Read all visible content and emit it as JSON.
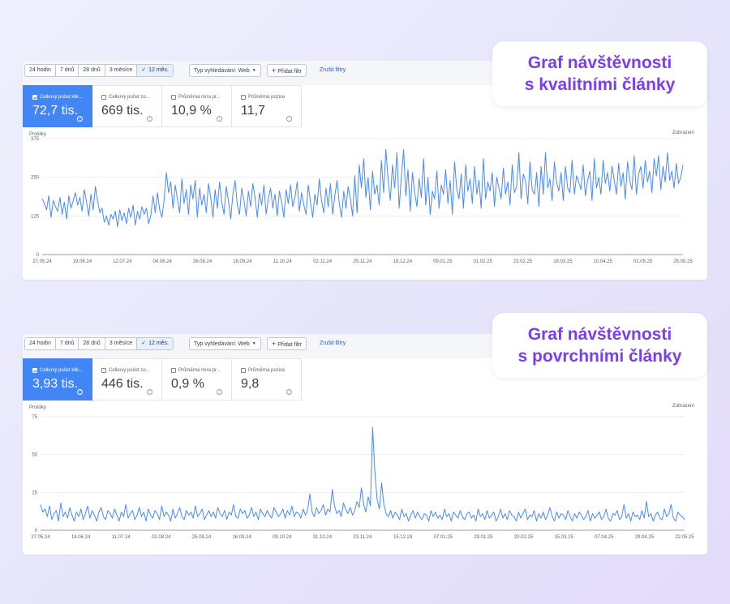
{
  "panels": [
    {
      "toolbar": {
        "ranges": [
          "24 hodin",
          "7 dnů",
          "28 dnů",
          "3 měsíce",
          "12 měs."
        ],
        "active_range_index": 4,
        "search_type": "Typ vyhledávání: Web",
        "add_filter": "Přidat filtr",
        "clear_filters": "Zrušit filtry"
      },
      "metrics": [
        {
          "label": "Celkový počet klik...",
          "value": "72,7 tis.",
          "active": true
        },
        {
          "label": "Celkový počet zo...",
          "value": "669 tis.",
          "active": false
        },
        {
          "label": "Průměrná míra pr...",
          "value": "10,9 %",
          "active": false
        },
        {
          "label": "Průměrná pozice",
          "value": "11,7",
          "active": false
        }
      ],
      "callout": {
        "line1": "Graf návštěvnosti",
        "line2": "s kvalitními články"
      }
    },
    {
      "toolbar": {
        "ranges": [
          "24 hodin",
          "7 dnů",
          "28 dnů",
          "3 měsíce",
          "12 měs."
        ],
        "active_range_index": 4,
        "search_type": "Typ vyhledávání: Web",
        "add_filter": "Přidat filtr",
        "clear_filters": "Zrušit filtry"
      },
      "metrics": [
        {
          "label": "Celkový počet klik...",
          "value": "3,93 tis.",
          "active": true
        },
        {
          "label": "Celkový počet zo...",
          "value": "446 tis.",
          "active": false
        },
        {
          "label": "Průměrná míra pr...",
          "value": "0,9 %",
          "active": false
        },
        {
          "label": "Průměrná pozice",
          "value": "9,8",
          "active": false
        }
      ],
      "callout": {
        "line1": "Graf návštěvnosti",
        "line2": "s povrchními články"
      }
    }
  ],
  "colors": {
    "accent": "#4285f4",
    "line": "#4a8af4",
    "callout_text": "#7b3df2"
  },
  "chart_data": [
    {
      "type": "line",
      "ylabel": "Prokliky",
      "y2label": "Zobrazení",
      "ylim": [
        0,
        375
      ],
      "yticks": [
        0,
        125,
        250,
        375
      ],
      "xticks": [
        "27.05.24",
        "19.06.24",
        "12.07.24",
        "04.08.24",
        "26.08.24",
        "18.09.24",
        "11.10.24",
        "02.11.24",
        "25.11.24",
        "18.12.24",
        "09.01.25",
        "01.02.25",
        "23.02.25",
        "18.03.25",
        "10.04.25",
        "02.05.25",
        "25.05.25"
      ],
      "series": [
        {
          "name": "Prokliky",
          "values": [
            180,
            165,
            145,
            190,
            120,
            175,
            155,
            140,
            185,
            130,
            170,
            115,
            190,
            150,
            175,
            200,
            160,
            185,
            140,
            210,
            170,
            125,
            195,
            145,
            220,
            175,
            135,
            150,
            105,
            125,
            95,
            130,
            115,
            140,
            90,
            145,
            110,
            135,
            100,
            150,
            120,
            160,
            95,
            140,
            115,
            155,
            130,
            150,
            100,
            125,
            190,
            135,
            200,
            145,
            120,
            175,
            265,
            200,
            235,
            150,
            225,
            180,
            135,
            245,
            165,
            210,
            130,
            225,
            180,
            240,
            120,
            215,
            160,
            195,
            135,
            230,
            185,
            120,
            210,
            150,
            235,
            170,
            130,
            220,
            175,
            115,
            195,
            240,
            160,
            130,
            215,
            175,
            125,
            205,
            155,
            230,
            185,
            120,
            200,
            160,
            225,
            130,
            180,
            215,
            150,
            195,
            125,
            205,
            170,
            120,
            210,
            165,
            225,
            155,
            185,
            235,
            140,
            200,
            160,
            130,
            225,
            170,
            120,
            195,
            160,
            245,
            175,
            135,
            215,
            155,
            230,
            130,
            190,
            240,
            165,
            120,
            205,
            150,
            220,
            180,
            125,
            255,
            135,
            290,
            215,
            310,
            185,
            250,
            145,
            270,
            195,
            225,
            160,
            305,
            200,
            340,
            245,
            175,
            290,
            215,
            330,
            150,
            250,
            340,
            190,
            275,
            140,
            265,
            200,
            155,
            245,
            185,
            310,
            160,
            250,
            130,
            205,
            180,
            270,
            150,
            225,
            195,
            275,
            165,
            240,
            130,
            300,
            210,
            180,
            260,
            150,
            290,
            205,
            245,
            165,
            285,
            195,
            240,
            150,
            310,
            180,
            235,
            205,
            265,
            155,
            250,
            215,
            180,
            280,
            195,
            235,
            160,
            290,
            200,
            220,
            330,
            180,
            260,
            240,
            165,
            300,
            210,
            195,
            265,
            155,
            285,
            195,
            330,
            215,
            245,
            175,
            300,
            235,
            205,
            265,
            175,
            285,
            215,
            200,
            305,
            195,
            255,
            235,
            210,
            290,
            190,
            240,
            270,
            175,
            310,
            215,
            250,
            195,
            305,
            230,
            265,
            205,
            285,
            240,
            195,
            295,
            220,
            265,
            180,
            300,
            240,
            210,
            320,
            195,
            260,
            285,
            215,
            305,
            235,
            270,
            200,
            310,
            255,
            320,
            210,
            285,
            235,
            330,
            240,
            270,
            215,
            295,
            230,
            250,
            290
          ]
        }
      ]
    },
    {
      "type": "line",
      "ylabel": "Prokliky",
      "y2label": "Zobrazení",
      "ylim": [
        0,
        75
      ],
      "yticks": [
        0,
        25,
        50,
        75
      ],
      "xticks": [
        "27.05.24",
        "18.06.24",
        "11.07.24",
        "02.08.24",
        "25.08.24",
        "16.09.24",
        "09.10.24",
        "31.10.24",
        "23.11.24",
        "15.12.24",
        "07.01.25",
        "29.01.25",
        "20.02.25",
        "15.03.25",
        "07.04.25",
        "29.04.25",
        "22.05.25"
      ],
      "series": [
        {
          "name": "Prokliky",
          "values": [
            17,
            12,
            14,
            9,
            16,
            7,
            11,
            13,
            6,
            18,
            9,
            12,
            8,
            15,
            10,
            6,
            12,
            9,
            14,
            7,
            11,
            16,
            8,
            13,
            10,
            6,
            12,
            15,
            9,
            7,
            13,
            11,
            8,
            14,
            10,
            6,
            12,
            9,
            17,
            8,
            11,
            13,
            7,
            10,
            15,
            9,
            12,
            6,
            14,
            10,
            8,
            13,
            11,
            7,
            16,
            9,
            12,
            10,
            6,
            14,
            8,
            11,
            15,
            9,
            7,
            13,
            10,
            12,
            8,
            16,
            9,
            11,
            14,
            7,
            10,
            13,
            9,
            12,
            8,
            15,
            11,
            9,
            13,
            7,
            12,
            10,
            17,
            9,
            8,
            14,
            11,
            13,
            8,
            10,
            15,
            9,
            12,
            7,
            14,
            11,
            9,
            13,
            10,
            8,
            15,
            12,
            9,
            11,
            14,
            8,
            13,
            10,
            16,
            9,
            12,
            11,
            8,
            14,
            10,
            13,
            24,
            12,
            9,
            15,
            11,
            13,
            17,
            10,
            14,
            12,
            27,
            16,
            11,
            13,
            9,
            18,
            14,
            11,
            15,
            10,
            13,
            19,
            15,
            28,
            17,
            12,
            22,
            16,
            68,
            38,
            20,
            14,
            31,
            17,
            11,
            9,
            13,
            8,
            12,
            10,
            7,
            14,
            9,
            11,
            6,
            10,
            13,
            8,
            12,
            9,
            7,
            11,
            10,
            6,
            13,
            9,
            12,
            8,
            10,
            7,
            14,
            9,
            11,
            6,
            12,
            10,
            8,
            13,
            9,
            7,
            11,
            12,
            8,
            10,
            6,
            14,
            9,
            11,
            7,
            13,
            8,
            10,
            12,
            6,
            9,
            14,
            8,
            11,
            7,
            13,
            10,
            9,
            6,
            12,
            8,
            11,
            14,
            7,
            10,
            9,
            13,
            6,
            11,
            8,
            12,
            7,
            10,
            15,
            9,
            6,
            12,
            8,
            11,
            10,
            7,
            13,
            9,
            6,
            11,
            8,
            12,
            10,
            7,
            9,
            13,
            6,
            11,
            8,
            10,
            12,
            7,
            9,
            14,
            8,
            6,
            11,
            10,
            13,
            7,
            9,
            17,
            8,
            11,
            6,
            12,
            9,
            10,
            7,
            13,
            8,
            19,
            9,
            11,
            6,
            10,
            12,
            8,
            7,
            14,
            9,
            11,
            17,
            8,
            6,
            12,
            10,
            9,
            7
          ]
        }
      ]
    }
  ]
}
